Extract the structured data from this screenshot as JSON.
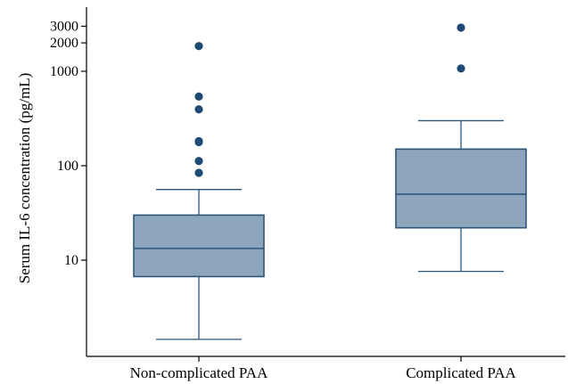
{
  "chart_data": {
    "type": "box",
    "title": "",
    "xlabel": "",
    "ylabel": "Serum IL-6 concentration (pg/mL)",
    "yscale": "log",
    "ylim": [
      1.3,
      3500
    ],
    "yticks": [
      10,
      100,
      1000,
      2000,
      3000
    ],
    "ytick_labels": [
      "10",
      "100",
      "1000",
      "2000",
      "3000"
    ],
    "grid": false,
    "categories": [
      "Non-complicated PAA",
      "Complicated PAA"
    ],
    "boxes": [
      {
        "category": "Non-complicated PAA",
        "whisker_low": 1.45,
        "q1": 6.7,
        "median": 13.3,
        "q3": 30,
        "whisker_high": 56,
        "outliers": [
          84,
          112,
          178,
          182,
          395,
          540,
          1850
        ]
      },
      {
        "category": "Complicated PAA",
        "whisker_low": 7.6,
        "q1": 22,
        "median": 50,
        "q3": 150,
        "whisker_high": 300,
        "outliers": [
          1070,
          2900
        ]
      }
    ],
    "colors": {
      "box_fill": "#8ea6bd",
      "box_stroke": "#2e5578",
      "outlier": "#1f4a73",
      "axis": "#000000"
    }
  }
}
